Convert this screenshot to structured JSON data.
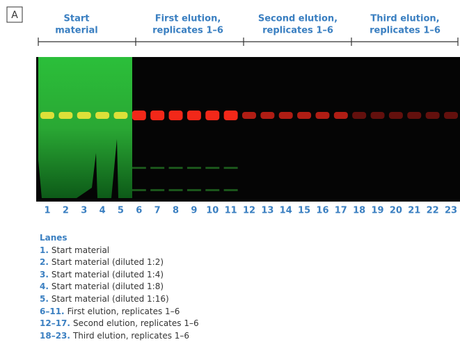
{
  "panel_label": "A",
  "groups": [
    {
      "line1": "Start",
      "line2": "material"
    },
    {
      "line1": "First elution,",
      "line2": "replicates 1–6"
    },
    {
      "line1": "Second elution,",
      "line2": "replicates 1–6"
    },
    {
      "line1": "Third elution,",
      "line2": "replicates 1–6"
    }
  ],
  "lanes": [
    "1",
    "2",
    "3",
    "4",
    "5",
    "6",
    "7",
    "8",
    "9",
    "10",
    "11",
    "12",
    "13",
    "14",
    "15",
    "16",
    "17",
    "18",
    "19",
    "20",
    "21",
    "22",
    "23"
  ],
  "legend": {
    "title": "Lanes",
    "items": [
      {
        "number": "1.",
        "text": "Start material"
      },
      {
        "number": "2.",
        "text": "Start material (diluted 1:2)"
      },
      {
        "number": "3.",
        "text": "Start material (diluted 1:4)"
      },
      {
        "number": "4.",
        "text": "Start material (diluted 1:8)"
      },
      {
        "number": "5.",
        "text": "Start material (diluted 1:16)"
      },
      {
        "number": "6–11.",
        "text": "First elution, replicates 1–6"
      },
      {
        "number": "12–17.",
        "text": "Second elution, replicates 1–6"
      },
      {
        "number": "18–23.",
        "text": "Third elution, replicates 1–6"
      }
    ]
  }
}
